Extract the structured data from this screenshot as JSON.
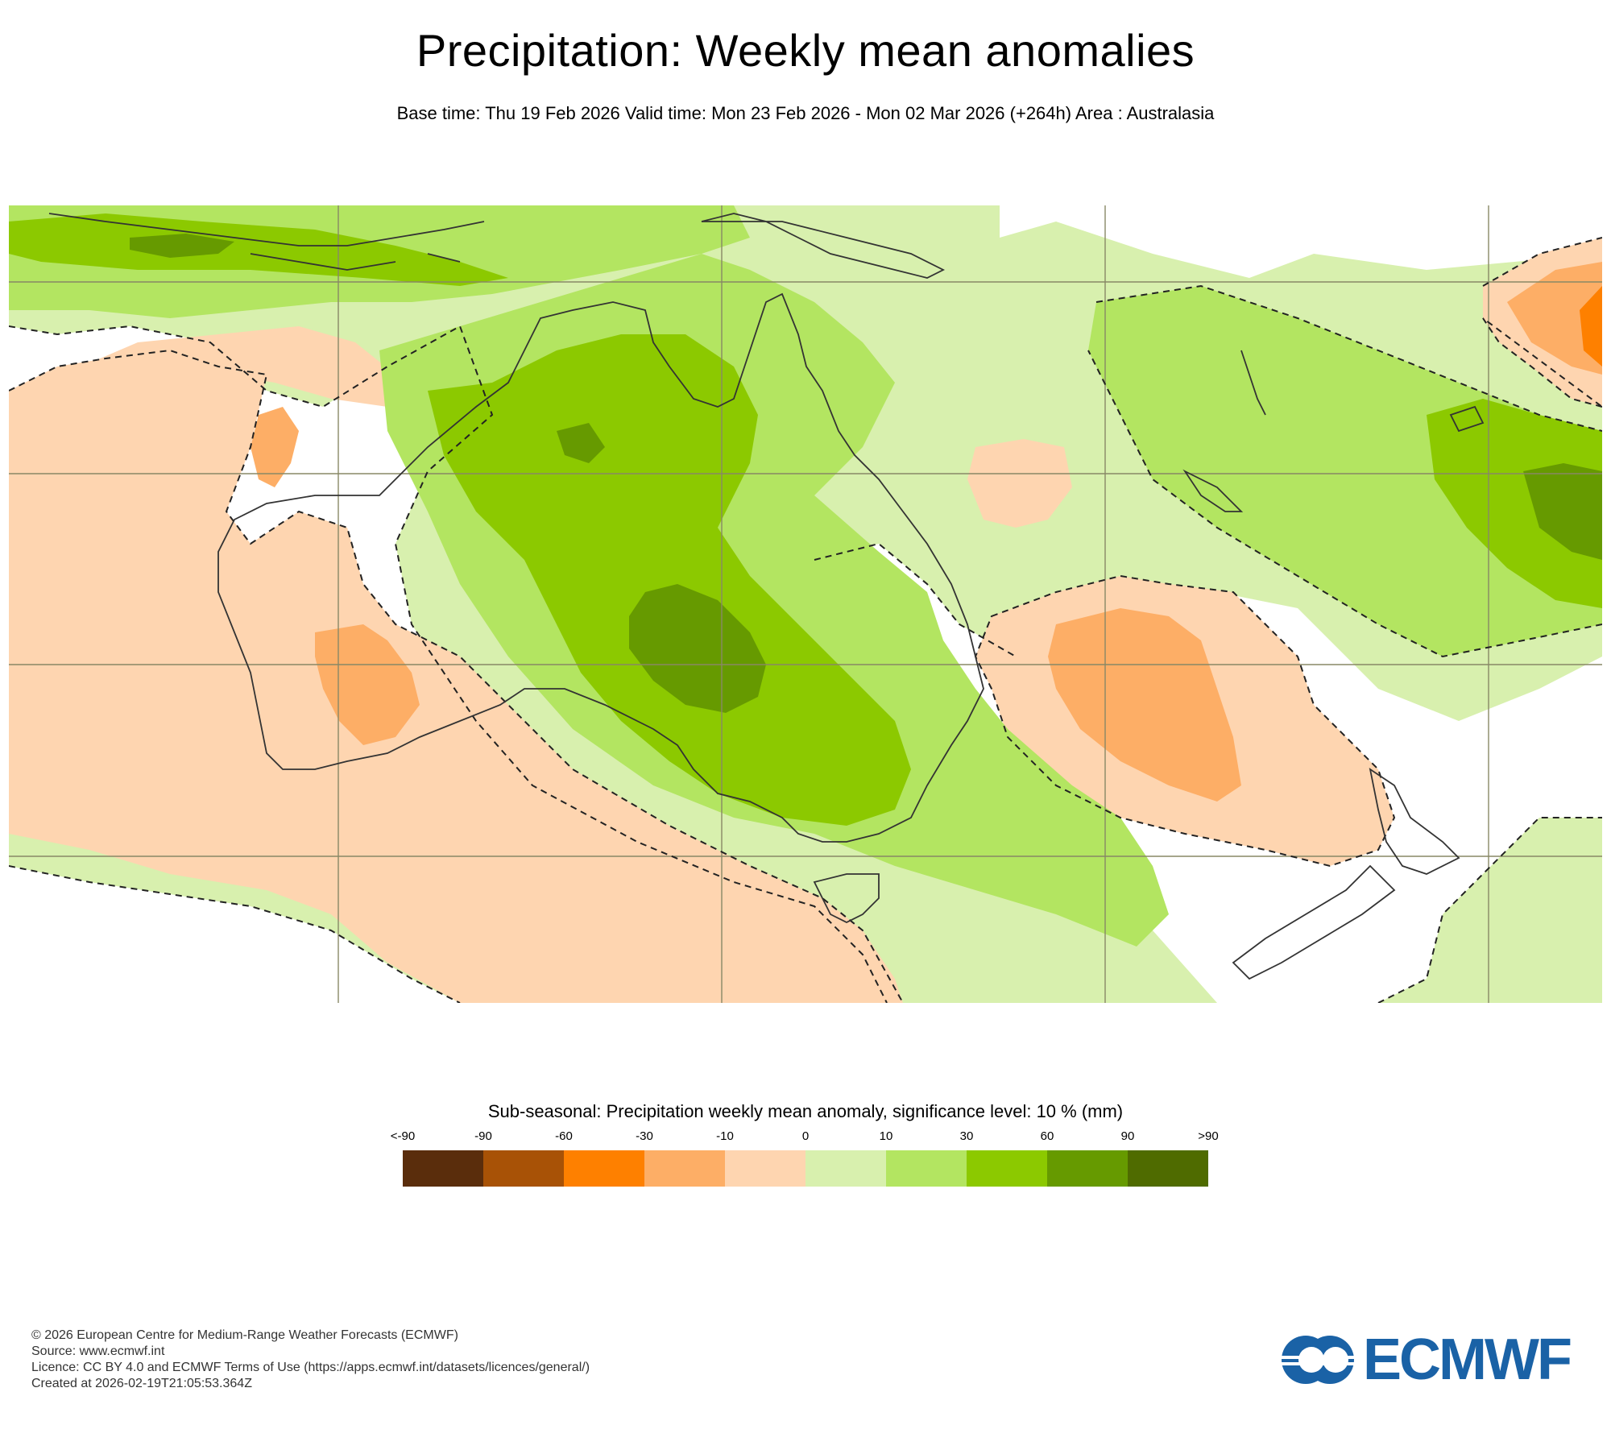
{
  "title": "Precipitation: Weekly mean anomalies",
  "subtitle": "Base time: Thu 19 Feb 2026 Valid time: Mon 23 Feb 2026 - Mon 02 Mar 2026 (+264h) Area : Australasia",
  "legend": {
    "title": "Sub-seasonal: Precipitation weekly mean anomaly, significance level: 10 % (mm)",
    "ticks": [
      "<-90",
      "-90",
      "-60",
      "-30",
      "-10",
      "0",
      "10",
      "30",
      "60",
      "90",
      ">90"
    ],
    "colors": [
      "#5a2d0c",
      "#a85206",
      "#fe8000",
      "#fdae66",
      "#fed5b0",
      "#d8f0ae",
      "#b3e561",
      "#8cc900",
      "#669a00",
      "#4f6b00"
    ]
  },
  "map": {
    "area": "Australasia",
    "colors": {
      "ocean_white": "#ffffff",
      "neg_light": "#fed5b0",
      "neg_mid": "#fdae66",
      "neg_strong": "#fe8000",
      "pos_light": "#d8f0ae",
      "pos_mid": "#b3e561",
      "pos_strong": "#8cc900",
      "pos_dark": "#669a00",
      "coast": "#333333",
      "grid": "#888866"
    }
  },
  "footer": {
    "copyright": "© 2026 European Centre for Medium-Range Weather Forecasts (ECMWF)",
    "source": "Source: www.ecmwf.int",
    "licence": "Licence: CC BY 4.0 and ECMWF Terms of Use (https://apps.ecmwf.int/datasets/licences/general/)",
    "created": "Created at 2026-02-19T21:05:53.364Z"
  },
  "logo": {
    "text": "ECMWF",
    "color": "#1a62a6"
  }
}
